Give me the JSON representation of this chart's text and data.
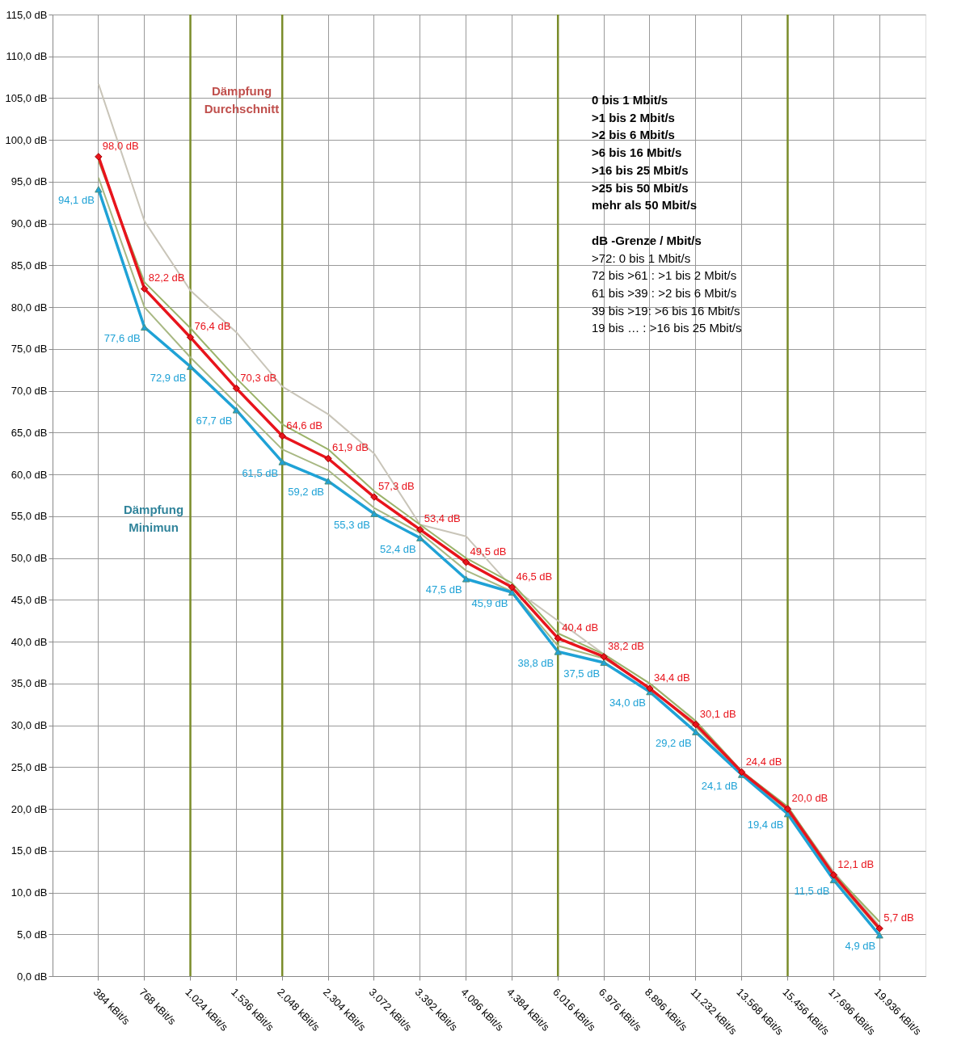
{
  "chart_data": {
    "type": "line",
    "categories": [
      "384 kBit/s",
      "768 kBit/s",
      "1.024 kBit/s",
      "1.536 kBit/s",
      "2.048 kBit/s",
      "2.304 kBit/s",
      "3.072 kBit/s",
      "3.392 kBit/s",
      "4.096 kBit/s",
      "4.384 kBit/s",
      "6.016 kBit/s",
      "6.976 kBit/s",
      "8.896 kBit/s",
      "11.232 kBit/s",
      "13.568 kBit/s",
      "15.456 kBit/s",
      "17.696 kBit/s",
      "19.936 kBit/s"
    ],
    "series": [
      {
        "color": "#c9c5b9",
        "marker": "none",
        "values": [
          106.7,
          90.3,
          82.0,
          77.0,
          70.5,
          67.2,
          62.5,
          54.0,
          52.6,
          46.5,
          42.5,
          38.5,
          35.0,
          30.5,
          24.5,
          20.2,
          12.5,
          6.0
        ]
      },
      {
        "color": "#9bb36a",
        "marker": "none",
        "values": [
          97.5,
          83.0,
          77.5,
          71.5,
          66.0,
          63.0,
          58.0,
          54.0,
          50.0,
          47.0,
          41.0,
          38.5,
          35.0,
          30.5,
          24.5,
          20.3,
          12.3,
          6.5
        ]
      },
      {
        "color": "#a8b883",
        "marker": "none",
        "values": [
          95.5,
          80.0,
          74.0,
          68.5,
          63.0,
          60.5,
          56.0,
          53.0,
          48.5,
          46.0,
          39.5,
          38.0,
          34.5,
          29.8,
          24.3,
          19.8,
          11.8,
          5.5
        ]
      },
      {
        "color": "#1fa2d6",
        "marker": "triangle",
        "values": [
          94.1,
          77.6,
          72.9,
          67.7,
          61.5,
          59.2,
          55.3,
          52.4,
          47.5,
          45.9,
          38.8,
          37.5,
          34.0,
          29.2,
          24.1,
          19.4,
          11.5,
          4.9
        ],
        "value_labels": [
          "94,1 dB",
          "77,6 dB",
          "72,9 dB",
          "67,7 dB",
          "61,5 dB",
          "59,2 dB",
          "55,3 dB",
          "52,4 dB",
          "47,5 dB",
          "45,9 dB",
          "38,8 dB",
          "37,5 dB",
          "34,0 dB",
          "29,2 dB",
          "24,1 dB",
          "19,4 dB",
          "11,5 dB",
          "4,9 dB"
        ]
      },
      {
        "color": "#e8141c",
        "marker": "diamond",
        "values": [
          98.0,
          82.2,
          76.4,
          70.3,
          64.6,
          61.9,
          57.3,
          53.4,
          49.5,
          46.5,
          40.4,
          38.2,
          34.4,
          30.1,
          24.4,
          20.0,
          12.1,
          5.7
        ],
        "value_labels": [
          "98,0 dB",
          "82,2 dB",
          "76,4 dB",
          "70,3 dB",
          "64,6 dB",
          "61,9 dB",
          "57,3 dB",
          "53,4 dB",
          "49,5 dB",
          "46,5 dB",
          "40,4 dB",
          "38,2 dB",
          "34,4 dB",
          "30,1 dB",
          "24,4 dB",
          "20,0 dB",
          "12,1 dB",
          "5,7 dB"
        ]
      }
    ],
    "ylim": [
      0,
      115
    ],
    "yticks": [
      {
        "value": 0,
        "label": "0,0 dB"
      },
      {
        "value": 5,
        "label": "5,0 dB"
      },
      {
        "value": 10,
        "label": "10,0 dB"
      },
      {
        "value": 15,
        "label": "15,0 dB"
      },
      {
        "value": 20,
        "label": "20,0 dB"
      },
      {
        "value": 25,
        "label": "25,0 dB"
      },
      {
        "value": 30,
        "label": "30,0 dB"
      },
      {
        "value": 35,
        "label": "35,0 dB"
      },
      {
        "value": 40,
        "label": "40,0 dB"
      },
      {
        "value": 45,
        "label": "45,0 dB"
      },
      {
        "value": 50,
        "label": "50,0 dB"
      },
      {
        "value": 55,
        "label": "55,0 dB"
      },
      {
        "value": 60,
        "label": "60,0 dB"
      },
      {
        "value": 65,
        "label": "65,0 dB"
      },
      {
        "value": 70,
        "label": "70,0 dB"
      },
      {
        "value": 75,
        "label": "75,0 dB"
      },
      {
        "value": 80,
        "label": "80,0 dB"
      },
      {
        "value": 85,
        "label": "85,0 dB"
      },
      {
        "value": 90,
        "label": "90,0 dB"
      },
      {
        "value": 95,
        "label": "95,0 dB"
      },
      {
        "value": 100,
        "label": "100,0 dB"
      },
      {
        "value": 105,
        "label": "105,0 dB"
      },
      {
        "value": 110,
        "label": "110,0 dB"
      },
      {
        "value": 115,
        "label": "115,0 dB"
      }
    ],
    "grid": true,
    "line_style": "solid",
    "ref_lines": [
      {
        "axis": "x",
        "value": "1.024 kBit/s",
        "color": "#7a8c2a"
      },
      {
        "axis": "x",
        "value": "2.048 kBit/s",
        "color": "#7a8c2a"
      },
      {
        "axis": "x",
        "value": "6.016 kBit/s",
        "color": "#7a8c2a"
      },
      {
        "axis": "x",
        "value": "15.456 kBit/s",
        "color": "#7a8c2a"
      }
    ],
    "annotations": [
      "Dämpfung Durchschnitt",
      "Dämpfung Minimun",
      "0 bis 1 Mbit/s",
      ">1 bis 2 Mbit/s",
      ">2 bis 6 Mbit/s",
      ">6 bis 16 Mbit/s",
      ">16 bis 25 Mbit/s",
      ">25 bis 50 Mbit/s",
      "mehr als 50 Mbit/s",
      "dB -Grenze  / Mbit/s",
      ">72: 0 bis 1 Mbit/s",
      "72 bis >61 : >1 bis 2 Mbit/s",
      "61 bis >39 : >2 bis 6 Mbit/s",
      "39 bis >19:  >6 bis 16 Mbit/s",
      "19 bis … : >16 bis 25 Mbit/s"
    ]
  }
}
